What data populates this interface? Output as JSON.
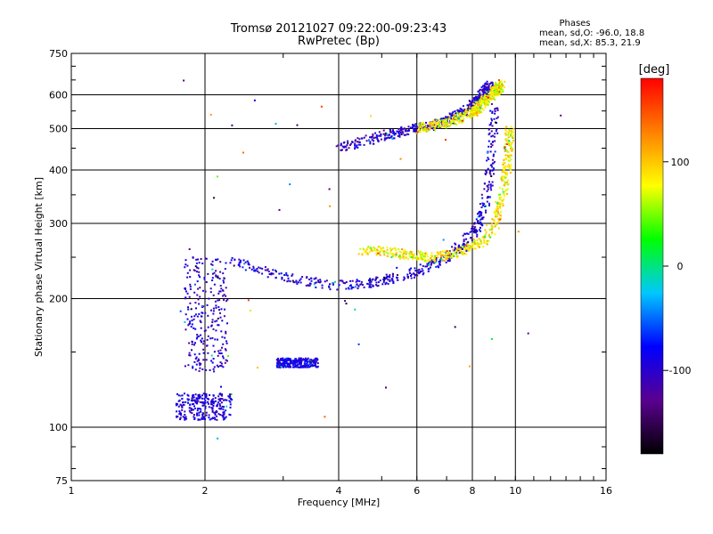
{
  "chart_data": {
    "type": "scatter",
    "title": "Tromsø 20121027 09:22:00-09:23:43",
    "subtitle": "RwPretec (Bp)",
    "xlabel": "Frequency [MHz]",
    "ylabel": "Stationary phase Virtual Height [km]",
    "xscale": "log",
    "yscale": "log",
    "xlim": [
      1,
      16
    ],
    "ylim": [
      75,
      750
    ],
    "x_ticks": [
      1,
      2,
      4,
      6,
      8,
      10,
      16
    ],
    "x_tick_labels": [
      "1",
      "2",
      "4",
      "6",
      "8",
      "10",
      "16"
    ],
    "y_ticks": [
      75,
      100,
      200,
      300,
      400,
      500,
      600,
      750
    ],
    "y_tick_labels": [
      "75",
      "100",
      "200",
      "300",
      "400",
      "500",
      "600",
      "750"
    ],
    "grid_x": [
      2,
      4,
      6,
      8,
      10
    ],
    "grid_y": [
      100,
      200,
      300,
      400,
      500,
      600
    ],
    "grid": true,
    "color_by": "phase (deg)",
    "colorbar": {
      "label": "[deg]",
      "range": [
        -180,
        180
      ],
      "ticks": [
        100,
        0,
        -100
      ],
      "tick_labels": [
        "100",
        "0",
        "-100"
      ],
      "colors": [
        "#000000",
        "#5a0090",
        "#0000ff",
        "#00c8ff",
        "#00ff00",
        "#ffff00",
        "#ff8000",
        "#ff0000"
      ]
    },
    "stats": {
      "heading": "Phases",
      "o_mode": "mean, sd,O: -96.0, 18.8",
      "x_mode": "mean, sd,X:  85.3, 21.9"
    },
    "traces": [
      {
        "name": "E-region low echoes",
        "x_range": [
          1.72,
          2.3
        ],
        "y_range": [
          104,
          120
        ],
        "phase": -95
      },
      {
        "name": "E-region steep rise",
        "x_range": [
          1.8,
          2.25
        ],
        "y_range": [
          135,
          250
        ],
        "phase": -100
      },
      {
        "name": "F-layer O-trace",
        "x": [
          2.3,
          2.6,
          3.0,
          3.5,
          4.0,
          4.5,
          5.0,
          5.5,
          6.0,
          6.5,
          7.0,
          7.5,
          8.0,
          8.3,
          8.5,
          8.7,
          8.8,
          8.9,
          9.0
        ],
        "y": [
          245,
          235,
          225,
          218,
          215,
          217,
          220,
          225,
          232,
          240,
          250,
          265,
          285,
          300,
          330,
          370,
          420,
          480,
          560
        ],
        "phase": -96
      },
      {
        "name": "F-layer X-trace",
        "x": [
          4.5,
          5.0,
          5.5,
          6.0,
          6.5,
          7.0,
          7.5,
          8.0,
          8.5,
          9.0,
          9.3,
          9.5,
          9.6,
          9.7,
          9.7
        ],
        "y": [
          260,
          258,
          255,
          252,
          250,
          252,
          258,
          265,
          275,
          300,
          340,
          380,
          420,
          470,
          500
        ],
        "phase": 85
      },
      {
        "name": "Multi-hop O",
        "x": [
          4.0,
          5.0,
          6.0,
          7.0,
          7.5,
          8.0,
          8.5,
          8.8
        ],
        "y": [
          450,
          480,
          500,
          520,
          540,
          570,
          610,
          630
        ],
        "phase": -100
      },
      {
        "name": "Multi-hop X",
        "x": [
          6.0,
          7.0,
          8.0,
          8.5,
          9.0,
          9.3
        ],
        "y": [
          500,
          515,
          545,
          580,
          610,
          630
        ],
        "phase": 80
      },
      {
        "name": "Sporadic E",
        "x_range": [
          2.9,
          3.6
        ],
        "y_range": [
          138,
          145
        ],
        "phase": -90
      }
    ]
  }
}
